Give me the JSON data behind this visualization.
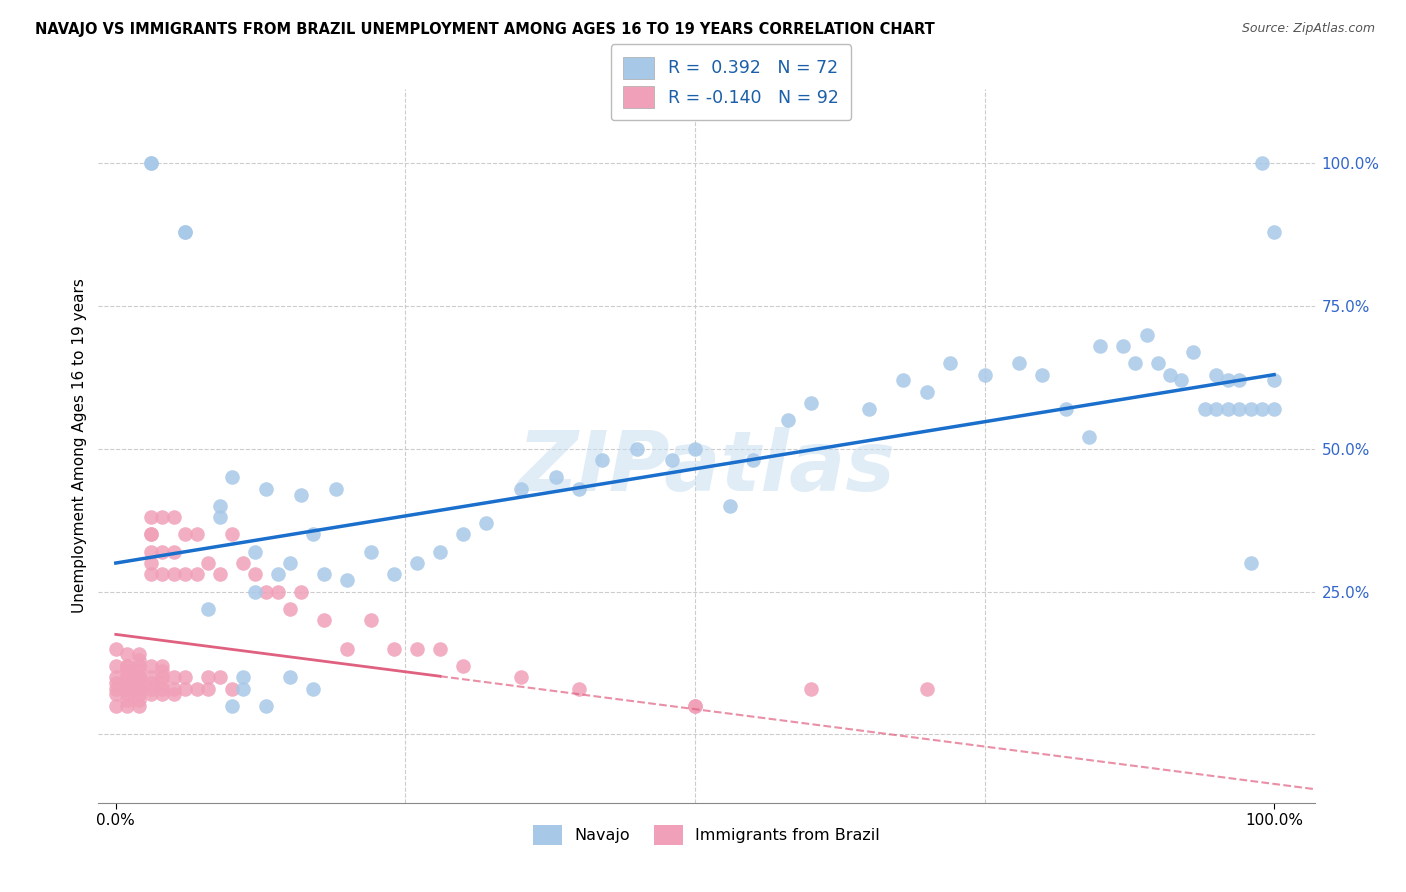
{
  "title": "NAVAJO VS IMMIGRANTS FROM BRAZIL UNEMPLOYMENT AMONG AGES 16 TO 19 YEARS CORRELATION CHART",
  "source": "Source: ZipAtlas.com",
  "ylabel": "Unemployment Among Ages 16 to 19 years",
  "ytick_labels": [
    "100.0%",
    "75.0%",
    "50.0%",
    "25.0%"
  ],
  "ytick_positions": [
    1.0,
    0.75,
    0.5,
    0.25
  ],
  "navajo_R": 0.392,
  "navajo_N": 72,
  "brazil_R": -0.14,
  "brazil_N": 92,
  "navajo_color": "#a8c8e8",
  "navajo_line_color": "#1a6fcc",
  "brazil_color": "#f0a0b8",
  "brazil_line_color": "#e06080",
  "navajo_x": [
    0.03,
    0.03,
    0.06,
    0.06,
    0.08,
    0.09,
    0.1,
    0.11,
    0.12,
    0.13,
    0.14,
    0.15,
    0.16,
    0.17,
    0.18,
    0.19,
    0.2,
    0.22,
    0.24,
    0.26,
    0.28,
    0.3,
    0.32,
    0.35,
    0.38,
    0.4,
    0.42,
    0.45,
    0.48,
    0.5,
    0.53,
    0.55,
    0.58,
    0.6,
    0.65,
    0.68,
    0.7,
    0.72,
    0.75,
    0.78,
    0.8,
    0.82,
    0.84,
    0.85,
    0.87,
    0.88,
    0.89,
    0.9,
    0.91,
    0.92,
    0.93,
    0.94,
    0.95,
    0.95,
    0.96,
    0.96,
    0.97,
    0.97,
    0.98,
    0.98,
    0.99,
    0.99,
    1.0,
    1.0,
    1.0,
    0.09,
    0.1,
    0.11,
    0.12,
    0.13,
    0.15,
    0.17
  ],
  "navajo_y": [
    1.0,
    1.0,
    0.88,
    0.88,
    0.22,
    0.4,
    0.45,
    0.1,
    0.32,
    0.43,
    0.28,
    0.3,
    0.42,
    0.35,
    0.28,
    0.43,
    0.27,
    0.32,
    0.28,
    0.3,
    0.32,
    0.35,
    0.37,
    0.43,
    0.45,
    0.43,
    0.48,
    0.5,
    0.48,
    0.5,
    0.4,
    0.48,
    0.55,
    0.58,
    0.57,
    0.62,
    0.6,
    0.65,
    0.63,
    0.65,
    0.63,
    0.57,
    0.52,
    0.68,
    0.68,
    0.65,
    0.7,
    0.65,
    0.63,
    0.62,
    0.67,
    0.57,
    0.57,
    0.63,
    0.57,
    0.62,
    0.57,
    0.62,
    0.57,
    0.3,
    0.57,
    1.0,
    0.57,
    0.62,
    0.88,
    0.38,
    0.05,
    0.08,
    0.25,
    0.05,
    0.1,
    0.08
  ],
  "brazil_x": [
    0.0,
    0.0,
    0.0,
    0.0,
    0.0,
    0.0,
    0.0,
    0.01,
    0.01,
    0.01,
    0.01,
    0.01,
    0.01,
    0.01,
    0.01,
    0.01,
    0.01,
    0.01,
    0.01,
    0.02,
    0.02,
    0.02,
    0.02,
    0.02,
    0.02,
    0.02,
    0.02,
    0.02,
    0.02,
    0.02,
    0.02,
    0.02,
    0.02,
    0.03,
    0.03,
    0.03,
    0.03,
    0.03,
    0.03,
    0.03,
    0.03,
    0.03,
    0.03,
    0.03,
    0.04,
    0.04,
    0.04,
    0.04,
    0.04,
    0.04,
    0.04,
    0.04,
    0.04,
    0.05,
    0.05,
    0.05,
    0.05,
    0.05,
    0.05,
    0.06,
    0.06,
    0.06,
    0.06,
    0.07,
    0.07,
    0.07,
    0.08,
    0.08,
    0.08,
    0.09,
    0.09,
    0.1,
    0.1,
    0.11,
    0.12,
    0.13,
    0.14,
    0.15,
    0.16,
    0.18,
    0.2,
    0.22,
    0.24,
    0.26,
    0.28,
    0.3,
    0.35,
    0.4,
    0.5,
    0.6,
    0.7,
    0.5
  ],
  "brazil_y": [
    0.1,
    0.07,
    0.12,
    0.08,
    0.15,
    0.05,
    0.09,
    0.1,
    0.08,
    0.12,
    0.06,
    0.14,
    0.1,
    0.08,
    0.05,
    0.12,
    0.07,
    0.09,
    0.11,
    0.12,
    0.08,
    0.1,
    0.14,
    0.08,
    0.05,
    0.1,
    0.07,
    0.13,
    0.09,
    0.11,
    0.06,
    0.08,
    0.1,
    0.35,
    0.3,
    0.38,
    0.32,
    0.28,
    0.35,
    0.1,
    0.08,
    0.12,
    0.07,
    0.09,
    0.38,
    0.32,
    0.28,
    0.12,
    0.08,
    0.1,
    0.07,
    0.09,
    0.11,
    0.38,
    0.32,
    0.28,
    0.08,
    0.1,
    0.07,
    0.35,
    0.28,
    0.1,
    0.08,
    0.35,
    0.28,
    0.08,
    0.3,
    0.08,
    0.1,
    0.28,
    0.1,
    0.35,
    0.08,
    0.3,
    0.28,
    0.25,
    0.25,
    0.22,
    0.25,
    0.2,
    0.15,
    0.2,
    0.15,
    0.15,
    0.15,
    0.12,
    0.1,
    0.08,
    0.05,
    0.08,
    0.08,
    0.05
  ]
}
